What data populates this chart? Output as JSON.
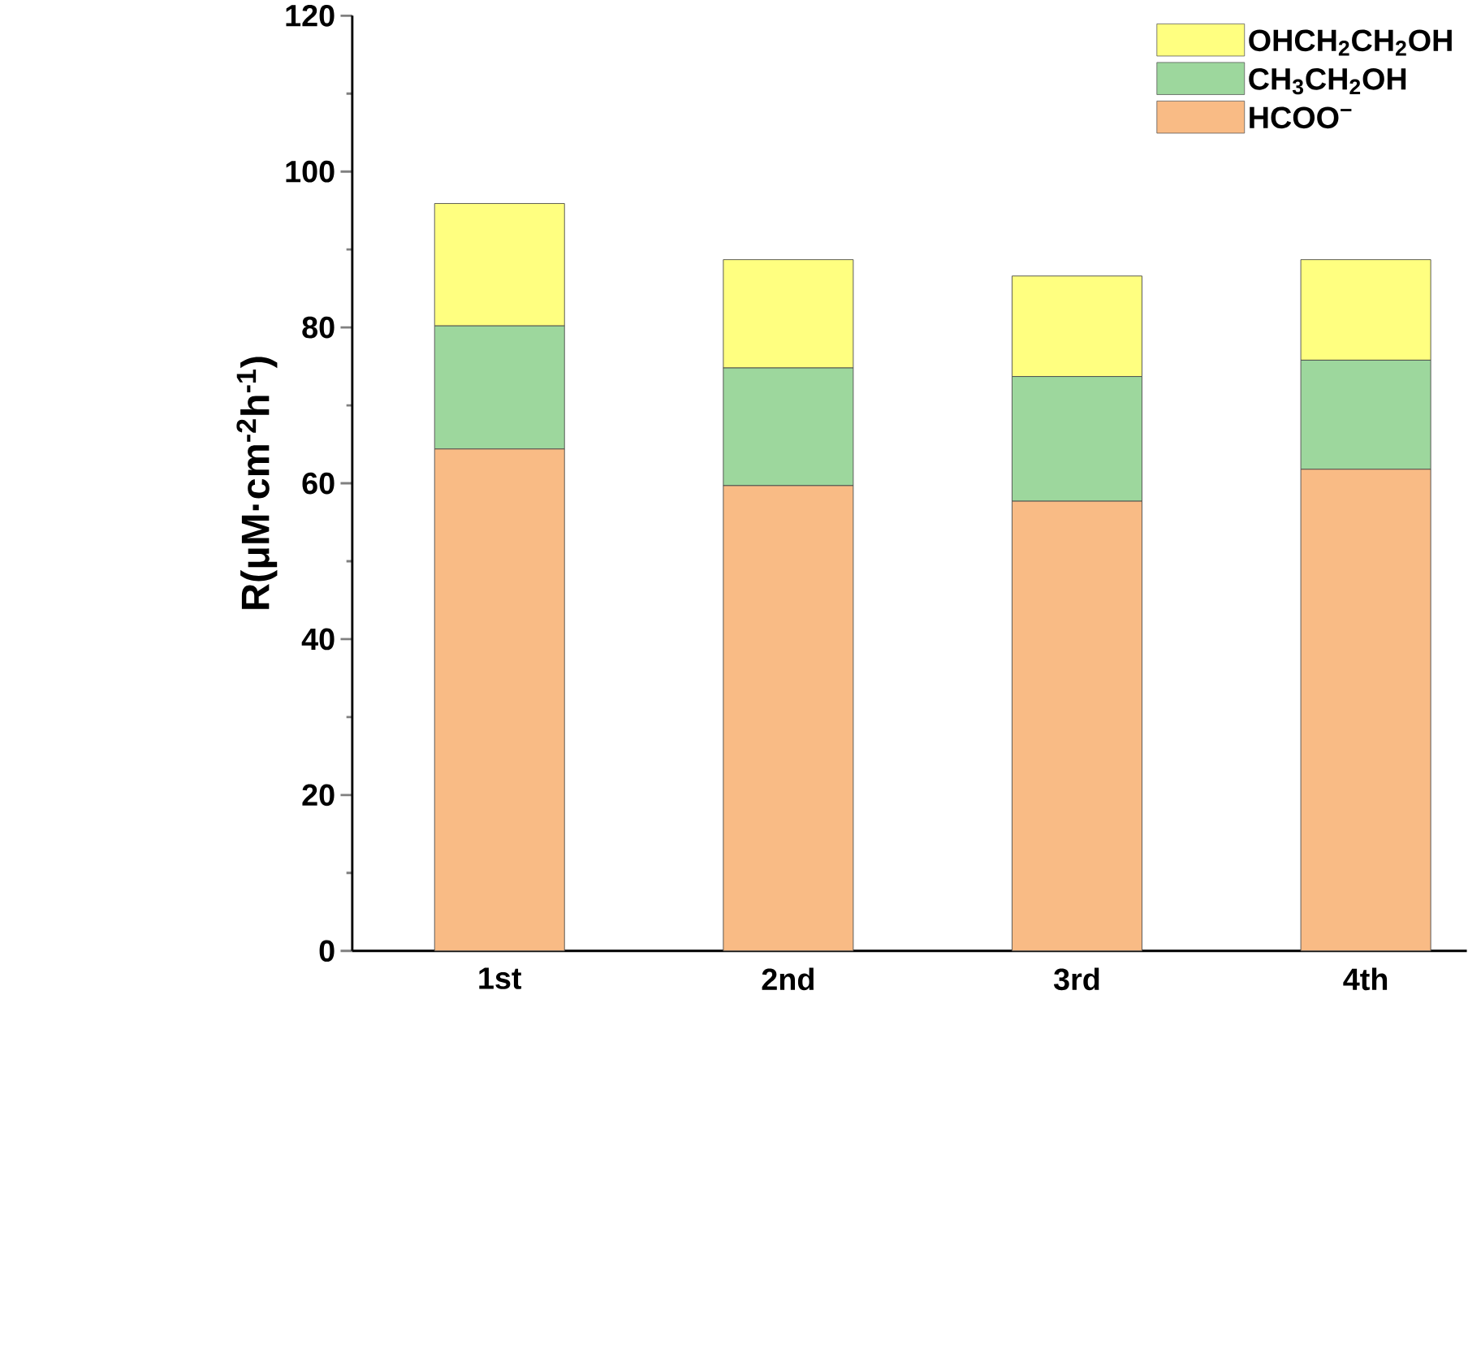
{
  "chart_data": {
    "type": "bar",
    "stacked": true,
    "ylabel": "R(μM·cm$^{-2}$h$^{-1}$)",
    "categories": [
      "1st",
      "2nd",
      "3rd",
      "4th"
    ],
    "series": [
      {
        "name": "HCOO$^{−}$",
        "color": "#f9bb85",
        "values": [
          64.4,
          59.7,
          57.7,
          61.8
        ]
      },
      {
        "name": "CH$_{3}$CH$_{2}$OH",
        "color": "#9dd79d",
        "values": [
          15.8,
          15.1,
          16.0,
          14.0
        ]
      },
      {
        "name": "OHCH$_{2}$CH$_{2}$OH",
        "color": "#ffff80",
        "values": [
          15.7,
          13.9,
          12.9,
          12.9
        ]
      }
    ],
    "ylim": [
      0,
      120
    ],
    "yticks": [
      0,
      20,
      40,
      60,
      80,
      100,
      120
    ],
    "legend": "top right"
  }
}
